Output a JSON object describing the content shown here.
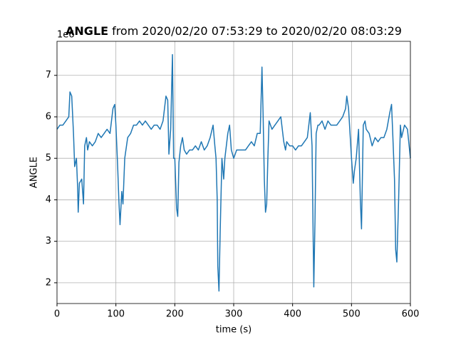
{
  "chart_data": {
    "type": "line",
    "title_bold": "ANGLE",
    "title": "from 2020/02/20 07:53:29 to 2020/02/20 08:03:29",
    "x_label": "time (s)",
    "y_label": "ANGLE",
    "y_offset_label": "1e6",
    "xlim": [
      0,
      600
    ],
    "xticks": [
      0,
      100,
      200,
      300,
      400,
      500,
      600
    ],
    "ylim": [
      1.5,
      7.82
    ],
    "yticks": [
      2,
      3,
      4,
      5,
      6,
      7
    ],
    "grid": true,
    "series": [
      {
        "name": "ANGLE",
        "color": "#1f77b4",
        "x": [
          0,
          5,
          10,
          15,
          20,
          22,
          25,
          28,
          30,
          33,
          35,
          36,
          38,
          42,
          45,
          47,
          50,
          52,
          55,
          60,
          65,
          70,
          75,
          80,
          85,
          90,
          95,
          98,
          100,
          103,
          105,
          107,
          110,
          112,
          115,
          118,
          120,
          125,
          130,
          135,
          140,
          145,
          150,
          155,
          160,
          165,
          170,
          175,
          180,
          185,
          188,
          190,
          193,
          196,
          198,
          200,
          203,
          205,
          207,
          210,
          213,
          216,
          220,
          225,
          230,
          235,
          240,
          245,
          250,
          255,
          260,
          265,
          268,
          270,
          272,
          273,
          275,
          277,
          280,
          283,
          285,
          290,
          293,
          296,
          300,
          305,
          310,
          315,
          320,
          325,
          330,
          335,
          340,
          345,
          348,
          350,
          352,
          354,
          356,
          358,
          360,
          365,
          370,
          375,
          380,
          385,
          388,
          390,
          395,
          400,
          405,
          410,
          415,
          420,
          425,
          430,
          433,
          435,
          436,
          438,
          440,
          443,
          445,
          450,
          455,
          460,
          465,
          470,
          475,
          480,
          485,
          490,
          492,
          495,
          500,
          503,
          505,
          508,
          512,
          515,
          517,
          520,
          523,
          525,
          530,
          535,
          540,
          545,
          550,
          555,
          560,
          565,
          568,
          570,
          573,
          575,
          577,
          580,
          583,
          585,
          590,
          595,
          600
        ],
        "values": [
          5.7,
          5.8,
          5.8,
          5.9,
          6.0,
          6.6,
          6.5,
          5.6,
          4.8,
          5.0,
          4.3,
          3.7,
          4.4,
          4.5,
          3.9,
          5.3,
          5.5,
          5.2,
          5.4,
          5.3,
          5.4,
          5.6,
          5.5,
          5.6,
          5.7,
          5.6,
          6.2,
          6.3,
          5.8,
          4.8,
          4.0,
          3.4,
          4.2,
          3.9,
          5.0,
          5.3,
          5.5,
          5.6,
          5.8,
          5.8,
          5.9,
          5.8,
          5.9,
          5.8,
          5.7,
          5.8,
          5.8,
          5.7,
          5.9,
          6.5,
          6.4,
          5.1,
          5.7,
          7.5,
          5.0,
          5.0,
          3.8,
          3.6,
          4.9,
          5.3,
          5.5,
          5.2,
          5.1,
          5.2,
          5.2,
          5.3,
          5.2,
          5.4,
          5.2,
          5.3,
          5.5,
          5.8,
          5.3,
          5.0,
          4.0,
          2.4,
          1.8,
          3.2,
          5.0,
          4.5,
          5.0,
          5.6,
          5.8,
          5.2,
          5.0,
          5.2,
          5.2,
          5.2,
          5.2,
          5.3,
          5.4,
          5.3,
          5.6,
          5.6,
          7.2,
          6.0,
          4.5,
          3.7,
          3.9,
          5.0,
          5.9,
          5.7,
          5.8,
          5.9,
          6.0,
          5.4,
          5.2,
          5.4,
          5.3,
          5.3,
          5.2,
          5.3,
          5.3,
          5.4,
          5.5,
          6.1,
          5.3,
          3.0,
          1.9,
          3.5,
          5.6,
          5.8,
          5.8,
          5.9,
          5.7,
          5.9,
          5.8,
          5.8,
          5.8,
          5.9,
          6.0,
          6.2,
          6.5,
          6.2,
          5.0,
          4.4,
          4.7,
          5.0,
          5.7,
          4.0,
          3.3,
          5.8,
          5.9,
          5.7,
          5.6,
          5.3,
          5.5,
          5.4,
          5.5,
          5.5,
          5.7,
          6.1,
          6.3,
          5.6,
          4.5,
          2.8,
          2.5,
          4.0,
          5.8,
          5.5,
          5.8,
          5.7,
          5.0
        ]
      }
    ]
  }
}
